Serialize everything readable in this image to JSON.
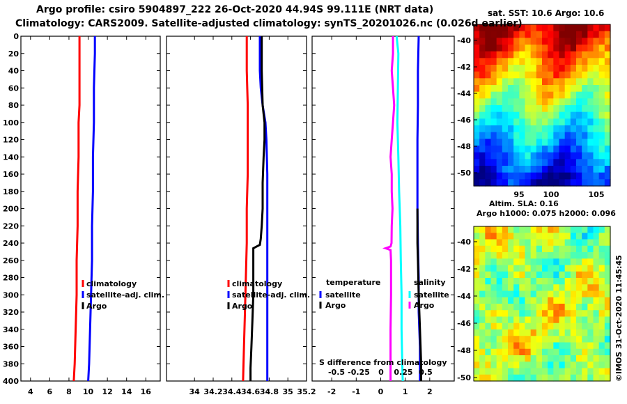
{
  "header": {
    "line1": "Argo profile: csiro 5904897_222 26-Oct-2020 44.94S 99.111E (NRT data)",
    "line2": "Climatology: CARS2009. Satellite-adjusted climatology: synTS_20201026.nc (0.026d earlier)"
  },
  "sst_map": {
    "title": "sat. SST: 10.6 Argo: 10.6",
    "x_ticks": [
      "95",
      "100",
      "105"
    ],
    "y_ticks": [
      "-40",
      "-42",
      "-44",
      "-46",
      "-48",
      "-50"
    ]
  },
  "altim_map": {
    "title1": "Altim. SLA: 0.16",
    "title2": "Argo h1000: 0.075 h2000: 0.096",
    "y_ticks": [
      "-40",
      "-42",
      "-44",
      "-46",
      "-48",
      "-50"
    ]
  },
  "watermark": "©IMOS 31-Oct-2020 11:45:45",
  "colors": {
    "climatology": "#ff0000",
    "satellite_adj": "#0000ff",
    "argo": "#000000",
    "salinity_diff_satellite": "#00ffff",
    "temperature_diff_satellite": "#ff00ff"
  },
  "chart_data": [
    {
      "type": "line",
      "panel": "temperature",
      "ylabel": "",
      "y_ticks": [
        0,
        20,
        40,
        60,
        80,
        100,
        120,
        140,
        160,
        180,
        200,
        220,
        240,
        260,
        280,
        300,
        320,
        340,
        360,
        380,
        400
      ],
      "ylim": [
        0,
        400
      ],
      "xlim": [
        3,
        17.5
      ],
      "x_ticks": [
        4,
        6,
        8,
        10,
        12,
        14,
        16
      ],
      "legend": [
        {
          "label": "climatology",
          "color_key": "climatology"
        },
        {
          "label": "satellite-adj. clim.",
          "color_key": "satellite_adj"
        },
        {
          "label": "Argo",
          "color_key": "argo"
        }
      ],
      "series": [
        {
          "name": "climatology",
          "color_key": "climatology",
          "width": 3,
          "points": [
            [
              9.1,
              0
            ],
            [
              9.1,
              20
            ],
            [
              9.1,
              40
            ],
            [
              9.1,
              60
            ],
            [
              9.1,
              80
            ],
            [
              9.0,
              100
            ],
            [
              9.0,
              140
            ],
            [
              8.9,
              180
            ],
            [
              8.9,
              220
            ],
            [
              8.8,
              260
            ],
            [
              8.8,
              300
            ],
            [
              8.7,
              340
            ],
            [
              8.6,
              380
            ],
            [
              8.5,
              400
            ]
          ]
        },
        {
          "name": "satellite-adj. clim.",
          "color_key": "satellite_adj",
          "width": 3,
          "points": [
            [
              10.7,
              0
            ],
            [
              10.7,
              20
            ],
            [
              10.6,
              60
            ],
            [
              10.6,
              100
            ],
            [
              10.5,
              140
            ],
            [
              10.5,
              180
            ],
            [
              10.4,
              220
            ],
            [
              10.4,
              260
            ],
            [
              10.3,
              300
            ],
            [
              10.2,
              340
            ],
            [
              10.1,
              380
            ],
            [
              10.0,
              400
            ]
          ]
        }
      ]
    },
    {
      "type": "line",
      "panel": "salinity",
      "xlim": [
        33.7,
        35.2
      ],
      "x_ticks": [
        34,
        34.2,
        34.4,
        34.6,
        34.8,
        35,
        35.2
      ],
      "x_tick_labels": [
        "34",
        "34.2",
        "34.4",
        "34.6",
        "34.8",
        "35",
        "35.2"
      ],
      "legend": [
        {
          "label": "climatology",
          "color_key": "climatology"
        },
        {
          "label": "satellite-adj. clim.",
          "color_key": "satellite_adj"
        },
        {
          "label": "Argo",
          "color_key": "argo"
        }
      ],
      "series": [
        {
          "name": "climatology",
          "color_key": "climatology",
          "width": 3,
          "points": [
            [
              34.56,
              0
            ],
            [
              34.56,
              40
            ],
            [
              34.57,
              80
            ],
            [
              34.57,
              120
            ],
            [
              34.57,
              160
            ],
            [
              34.56,
              200
            ],
            [
              34.56,
              240
            ],
            [
              34.55,
              280
            ],
            [
              34.54,
              320
            ],
            [
              34.53,
              360
            ],
            [
              34.52,
              400
            ]
          ]
        },
        {
          "name": "satellite-adj. clim.",
          "color_key": "satellite_adj",
          "width": 3,
          "points": [
            [
              34.7,
              0
            ],
            [
              34.7,
              20
            ],
            [
              34.7,
              40
            ],
            [
              34.71,
              60
            ],
            [
              34.73,
              80
            ],
            [
              34.76,
              100
            ],
            [
              34.77,
              120
            ],
            [
              34.78,
              160
            ],
            [
              34.78,
              200
            ],
            [
              34.78,
              240
            ],
            [
              34.78,
              280
            ],
            [
              34.78,
              320
            ],
            [
              34.78,
              360
            ],
            [
              34.78,
              400
            ]
          ]
        },
        {
          "name": "Argo",
          "color_key": "argo",
          "width": 3,
          "points": [
            [
              34.72,
              0
            ],
            [
              34.72,
              40
            ],
            [
              34.73,
              80
            ],
            [
              34.75,
              100
            ],
            [
              34.75,
              120
            ],
            [
              34.74,
              140
            ],
            [
              34.73,
              170
            ],
            [
              34.73,
              200
            ],
            [
              34.72,
              220
            ],
            [
              34.71,
              235
            ],
            [
              34.7,
              242
            ],
            [
              34.63,
              246
            ],
            [
              34.63,
              270
            ],
            [
              34.63,
              300
            ],
            [
              34.62,
              330
            ],
            [
              34.61,
              360
            ],
            [
              34.6,
              385
            ],
            [
              34.6,
              400
            ]
          ]
        }
      ]
    },
    {
      "type": "line",
      "panel": "difference",
      "xlim": [
        -2.8,
        3
      ],
      "x_ticks": [
        -2,
        -1,
        0,
        1,
        2
      ],
      "x_tick_labels": [
        "-2",
        "-1",
        "0",
        "1",
        "2"
      ],
      "s_axis": {
        "label": "S difference from climatology",
        "ticks": [
          -0.5,
          -0.25,
          0,
          0.25,
          0.5
        ],
        "tick_labels": [
          "-0.5",
          "-0.25",
          "0",
          "0.25",
          "0.5"
        ]
      },
      "legend_left": {
        "title": "temperature",
        "items": [
          {
            "label": "satellite",
            "color_key": "satellite_adj"
          },
          {
            "label": "Argo",
            "color_key": "argo"
          }
        ]
      },
      "legend_right": {
        "title": "salinity",
        "items": [
          {
            "label": "satellite",
            "color_key": "salinity_diff_satellite"
          },
          {
            "label": "Argo",
            "color_key": "temperature_diff_satellite"
          }
        ]
      },
      "series": [
        {
          "name": "temperature satellite",
          "color_key": "satellite_adj",
          "width": 3,
          "points": [
            [
              1.55,
              0
            ],
            [
              1.52,
              40
            ],
            [
              1.52,
              80
            ],
            [
              1.5,
              120
            ],
            [
              1.5,
              160
            ],
            [
              1.5,
              200
            ],
            [
              1.52,
              240
            ],
            [
              1.55,
              280
            ],
            [
              1.55,
              320
            ],
            [
              1.6,
              360
            ],
            [
              1.6,
              400
            ]
          ]
        },
        {
          "name": "temperature Argo",
          "color_key": "argo",
          "width": 3,
          "points": [
            [
              1.5,
              200
            ],
            [
              1.5,
              240
            ],
            [
              1.52,
              260
            ],
            [
              1.55,
              300
            ],
            [
              1.6,
              340
            ],
            [
              1.65,
              380
            ],
            [
              1.65,
              400
            ]
          ]
        },
        {
          "name": "salinity satellite",
          "color_key": "salinity_diff_satellite",
          "width": 3,
          "points": [
            [
              0.65,
              0
            ],
            [
              0.72,
              20
            ],
            [
              0.7,
              60
            ],
            [
              0.68,
              100
            ],
            [
              0.72,
              140
            ],
            [
              0.75,
              180
            ],
            [
              0.8,
              220
            ],
            [
              0.82,
              260
            ],
            [
              0.85,
              300
            ],
            [
              0.85,
              340
            ],
            [
              0.88,
              380
            ],
            [
              0.9,
              400
            ]
          ]
        },
        {
          "name": "salinity Argo",
          "color_key": "temperature_diff_satellite",
          "width": 3,
          "points": [
            [
              0.5,
              0
            ],
            [
              0.5,
              20
            ],
            [
              0.45,
              40
            ],
            [
              0.5,
              60
            ],
            [
              0.55,
              80
            ],
            [
              0.5,
              100
            ],
            [
              0.45,
              120
            ],
            [
              0.4,
              140
            ],
            [
              0.45,
              160
            ],
            [
              0.45,
              180
            ],
            [
              0.48,
              200
            ],
            [
              0.45,
              220
            ],
            [
              0.44,
              240
            ],
            [
              0.4,
              244
            ],
            [
              0.2,
              246
            ],
            [
              0.4,
              248
            ],
            [
              0.42,
              260
            ],
            [
              0.42,
              300
            ],
            [
              0.4,
              340
            ],
            [
              0.4,
              380
            ],
            [
              0.4,
              400
            ]
          ]
        }
      ]
    }
  ]
}
